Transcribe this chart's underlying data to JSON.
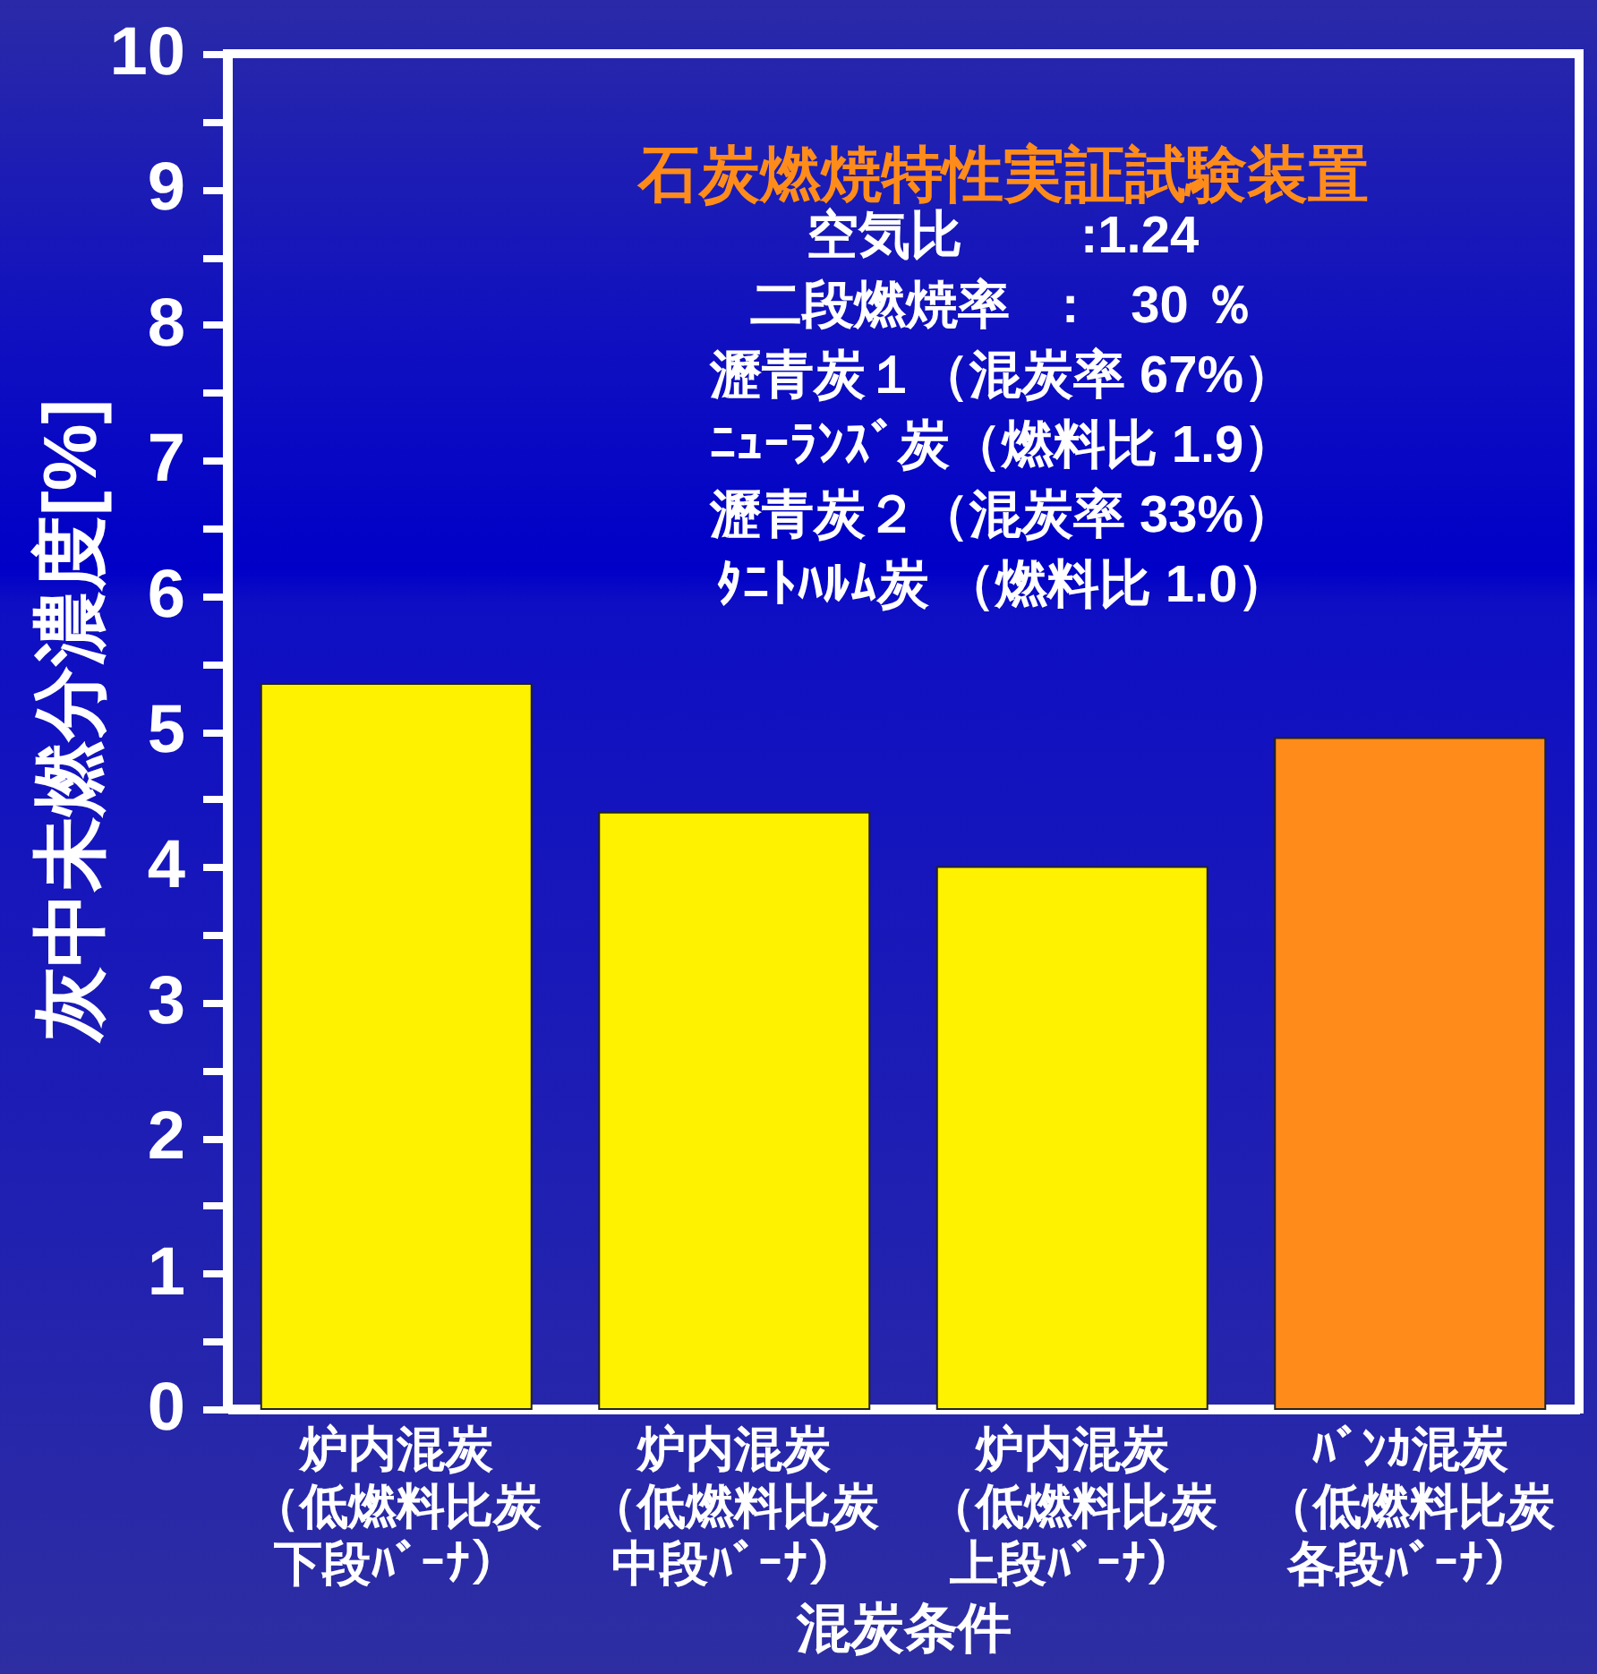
{
  "chart_data": {
    "type": "bar",
    "title": "石炭燃焼特性実証試験装置",
    "annotations": [
      "空気比　　 :1.24",
      "二段燃焼率　:　30 ％",
      "瀝青炭１（混炭率 67%）",
      "ﾆｭｰﾗﾝｽﾞ炭（燃料比 1.9）",
      "瀝青炭２（混炭率 33%）",
      "ﾀﾆﾄﾊﾙﾑ炭 （燃料比 1.0）"
    ],
    "xlabel": "混炭条件",
    "ylabel": "灰中未燃分濃度[%]",
    "categories": [
      "炉内混炭（低燃料比炭下段ﾊﾞｰﾅ）",
      "炉内混炭（低燃料比炭中段ﾊﾞｰﾅ）",
      "炉内混炭（低燃料比炭上段ﾊﾞｰﾅ）",
      "ﾊﾞﾝｶ混炭（低燃料比炭各段ﾊﾞｰﾅ）"
    ],
    "values": [
      5.35,
      4.4,
      4.0,
      4.95
    ],
    "colors": [
      "#fff200",
      "#fff200",
      "#fff200",
      "#ff8c1a"
    ],
    "ylim": [
      0,
      10
    ],
    "yticks": [
      0,
      {
        "value": 0.5,
        "label": null
      },
      1,
      {
        "value": 1.5,
        "label": null
      },
      2,
      {
        "value": 2.5,
        "label": null
      },
      3,
      {
        "value": 3.5,
        "label": null
      },
      4,
      {
        "value": 4.5,
        "label": null
      },
      5,
      {
        "value": 5.5,
        "label": null
      },
      6,
      {
        "value": 6.5,
        "label": null
      },
      7,
      {
        "value": 7.5,
        "label": null
      },
      8,
      {
        "value": 8.5,
        "label": null
      },
      9,
      {
        "value": 9.5,
        "label": null
      },
      10
    ],
    "grid": false,
    "legend": false
  }
}
